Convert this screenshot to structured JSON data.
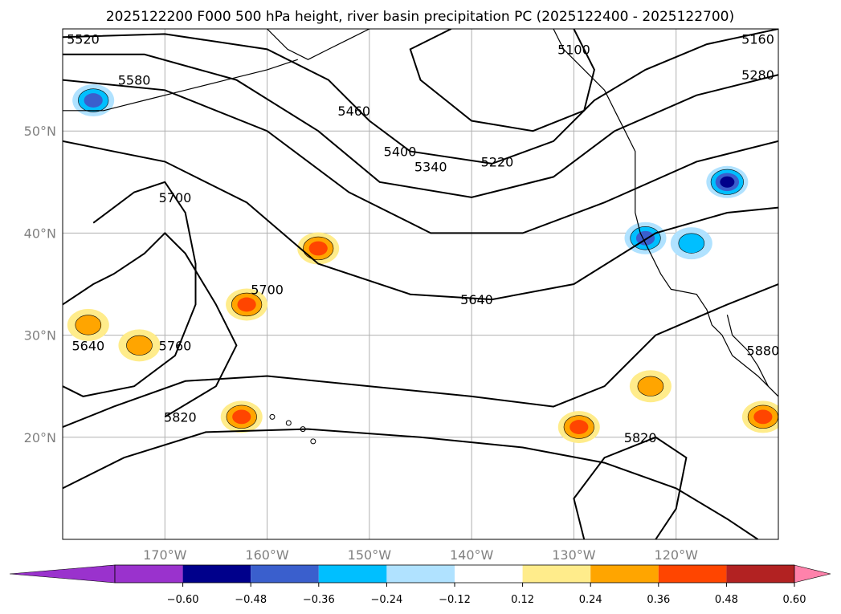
{
  "chart_data": {
    "type": "heatmap",
    "title": "2025122200 F000 500 hPa height, river basin precipitation PC (2025122400 - 2025122700)",
    "map": {
      "lon_range": [
        -180,
        -110
      ],
      "lat_range": [
        10,
        60
      ],
      "lon_ticks": [
        -170,
        -160,
        -150,
        -140,
        -130,
        -120
      ],
      "lon_tick_labels": [
        "170°W",
        "160°W",
        "150°W",
        "140°W",
        "130°W",
        "120°W"
      ],
      "lat_ticks": [
        20,
        30,
        40,
        50
      ],
      "lat_tick_labels": [
        "20°N",
        "30°N",
        "40°N",
        "50°N"
      ],
      "grid": true
    },
    "colorbar": {
      "ticks": [
        "−0.60",
        "−0.48",
        "−0.36",
        "−0.24",
        "−0.12",
        "0.12",
        "0.24",
        "0.36",
        "0.48",
        "0.60"
      ],
      "colors": [
        "#9a32cd",
        "#00008b",
        "#3a5fcd",
        "#00bfff",
        "#b0e2ff",
        "#ffffff",
        "#ffec8b",
        "#ffa500",
        "#ff4500",
        "#b22222",
        "#ff82ab"
      ],
      "extend": "both"
    },
    "contour_labels": [
      {
        "text": "5520",
        "lon": -178,
        "lat": 59
      },
      {
        "text": "5580",
        "lon": -173,
        "lat": 55
      },
      {
        "text": "5460",
        "lon": -151.5,
        "lat": 52
      },
      {
        "text": "5400",
        "lon": -147,
        "lat": 48
      },
      {
        "text": "5340",
        "lon": -144,
        "lat": 46.5
      },
      {
        "text": "5220",
        "lon": -137.5,
        "lat": 47
      },
      {
        "text": "5100",
        "lon": -130,
        "lat": 58
      },
      {
        "text": "5160",
        "lon": -112,
        "lat": 59
      },
      {
        "text": "5280",
        "lon": -112,
        "lat": 55.5
      },
      {
        "text": "5700",
        "lon": -169,
        "lat": 43.5
      },
      {
        "text": "5700",
        "lon": -160,
        "lat": 34.5
      },
      {
        "text": "5640",
        "lon": -139.5,
        "lat": 33.5
      },
      {
        "text": "5640",
        "lon": -177.5,
        "lat": 29
      },
      {
        "text": "5760",
        "lon": -169,
        "lat": 29
      },
      {
        "text": "5820",
        "lon": -168.5,
        "lat": 22
      },
      {
        "text": "5820",
        "lon": -123.5,
        "lat": 20
      },
      {
        "text": "5880",
        "lon": -111.5,
        "lat": 28.5
      }
    ],
    "contour_levels": [
      5100,
      5160,
      5220,
      5280,
      5340,
      5400,
      5460,
      5520,
      5580,
      5640,
      5700,
      5760,
      5820,
      5880
    ],
    "precip_pc_anomalies": [
      {
        "sign": "positive",
        "max_level": "0.36",
        "lon": -155,
        "lat": 38.5
      },
      {
        "sign": "positive",
        "max_level": "0.36",
        "lon": -162,
        "lat": 33
      },
      {
        "sign": "positive",
        "max_level": "0.36",
        "lon": -162.5,
        "lat": 22
      },
      {
        "sign": "positive",
        "max_level": "0.36",
        "lon": -129.5,
        "lat": 21
      },
      {
        "sign": "positive",
        "max_level": "0.36",
        "lon": -111.5,
        "lat": 22
      },
      {
        "sign": "positive",
        "max_level": "0.24",
        "lon": -177.5,
        "lat": 31
      },
      {
        "sign": "positive",
        "max_level": "0.24",
        "lon": -172.5,
        "lat": 29
      },
      {
        "sign": "positive",
        "max_level": "0.24",
        "lon": -122.5,
        "lat": 25
      },
      {
        "sign": "negative",
        "min_level": "-0.48",
        "lon": -115,
        "lat": 45
      },
      {
        "sign": "negative",
        "min_level": "-0.36",
        "lon": -123,
        "lat": 39.5
      },
      {
        "sign": "negative",
        "min_level": "-0.36",
        "lon": -177,
        "lat": 53
      },
      {
        "sign": "negative",
        "min_level": "-0.24",
        "lon": -118.5,
        "lat": 39
      }
    ]
  }
}
